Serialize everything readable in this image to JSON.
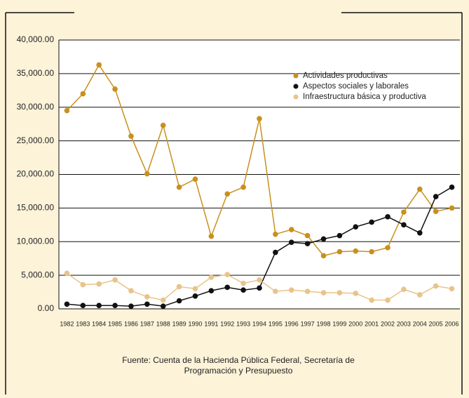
{
  "chart_data": {
    "type": "line",
    "categories": [
      "1982",
      "1983",
      "1984",
      "1985",
      "1986",
      "1987",
      "1988",
      "1989",
      "1990",
      "1991",
      "1992",
      "1993",
      "1994",
      "1995",
      "1996",
      "1997",
      "1998",
      "1999",
      "2000",
      "2001",
      "2002",
      "2003",
      "2004",
      "2005",
      "2006"
    ],
    "series": [
      {
        "name": "Actividades productivas",
        "color": "#c8901e",
        "values": [
          29500,
          32000,
          36300,
          32700,
          25700,
          20100,
          27300,
          18100,
          19300,
          10800,
          17100,
          18100,
          28300,
          11100,
          11800,
          10900,
          7900,
          8500,
          8600,
          8500,
          9100,
          14400,
          17800,
          14500,
          15000
        ]
      },
      {
        "name": "Aspectos sociales y laborales",
        "color": "#111111",
        "values": [
          700,
          500,
          500,
          500,
          400,
          700,
          400,
          1200,
          1900,
          2700,
          3200,
          2800,
          3100,
          8400,
          9900,
          9700,
          10400,
          10900,
          12200,
          12900,
          13700,
          12500,
          11300,
          16700,
          18100
        ]
      },
      {
        "name": "Infraestructura básica y productiva",
        "color": "#e8c48a",
        "values": [
          5300,
          3600,
          3700,
          4300,
          2700,
          1800,
          1300,
          3300,
          3000,
          4700,
          5100,
          3800,
          4300,
          2600,
          2800,
          2600,
          2400,
          2400,
          2300,
          1300,
          1300,
          2900,
          2100,
          3400,
          3000
        ]
      }
    ],
    "ylim": [
      0,
      40000
    ],
    "yticks": [
      {
        "value": 0,
        "label": "0.00"
      },
      {
        "value": 5000,
        "label": "5,000.00"
      },
      {
        "value": 10000,
        "label": "10,000.00"
      },
      {
        "value": 15000,
        "label": "15,000.00"
      },
      {
        "value": 20000,
        "label": "20,000.00"
      },
      {
        "value": 25000,
        "label": "25,000.00"
      },
      {
        "value": 30000,
        "label": "30,000.00"
      },
      {
        "value": 35000,
        "label": "35,000.00"
      },
      {
        "value": 40000,
        "label": "40,000.00"
      }
    ],
    "grid": true,
    "legend": "upper right",
    "source": [
      "Fuente: Cuenta de la Hacienda Pública Federal, Secretaría de",
      "Programación y Presupuesto"
    ]
  }
}
